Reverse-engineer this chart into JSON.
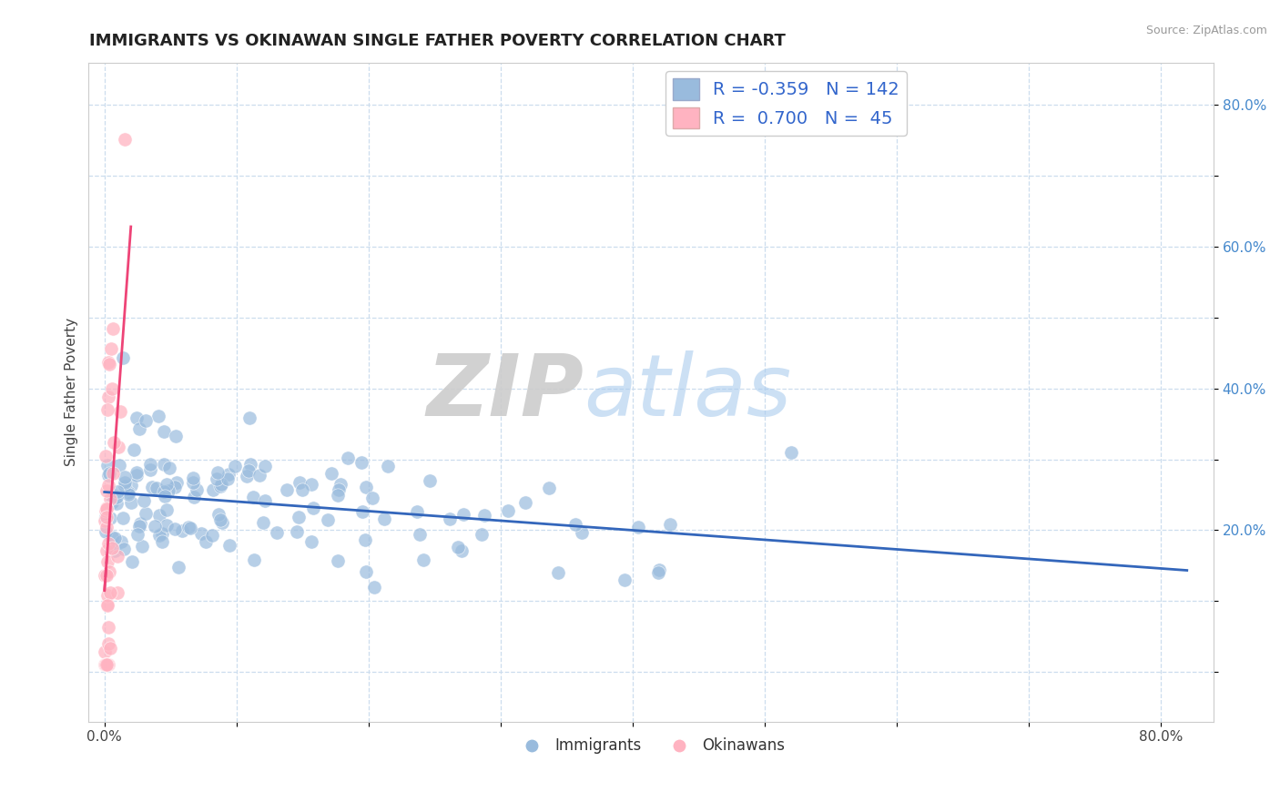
{
  "title": "IMMIGRANTS VS OKINAWAN SINGLE FATHER POVERTY CORRELATION CHART",
  "source": "Source: ZipAtlas.com",
  "ylabel": "Single Father Poverty",
  "blue_color": "#99BBDD",
  "pink_color": "#FFB3C1",
  "regression_blue_color": "#3366BB",
  "regression_pink_color": "#EE4477",
  "legend_R_blue": "-0.359",
  "legend_N_blue": "142",
  "legend_R_pink": "0.700",
  "legend_N_pink": "45",
  "legend_label_blue": "Immigrants",
  "legend_label_pink": "Okinawans",
  "watermark_ZIP": "ZIP",
  "watermark_atlas": "atlas",
  "background_color": "#FFFFFF",
  "grid_color": "#CCDDEE",
  "title_fontsize": 13,
  "axis_label_fontsize": 11,
  "tick_fontsize": 11,
  "blue_R": -0.359,
  "blue_N": 142,
  "pink_R": 0.7,
  "pink_N": 45
}
